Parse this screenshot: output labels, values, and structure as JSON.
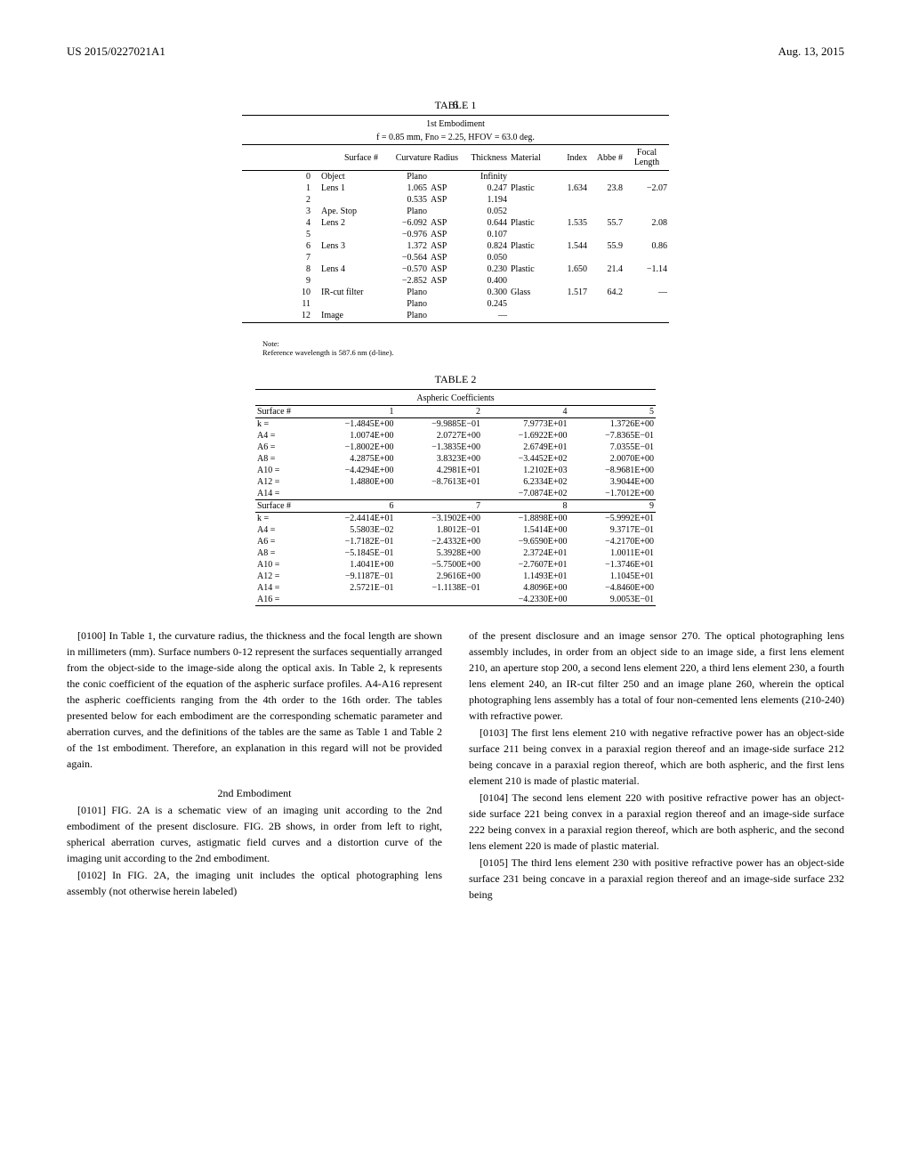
{
  "header": {
    "left": "US 2015/0227021A1",
    "right": "Aug. 13, 2015"
  },
  "pageNumber": "6",
  "table1": {
    "title": "TABLE 1",
    "caption": "1st Embodiment",
    "subcaption": "f = 0.85 mm, Fno = 2.25, HFOV = 63.0 deg.",
    "cols": [
      "Surface #",
      "",
      "Curvature Radius",
      "",
      "Thickness",
      "Material",
      "Index",
      "Abbe #",
      "Focal\nLength"
    ],
    "rows": [
      [
        "0",
        "Object",
        "Plano",
        "",
        "Infinity",
        "",
        "",
        "",
        ""
      ],
      [
        "1",
        "Lens 1",
        "1.065",
        "ASP",
        "0.247",
        "Plastic",
        "1.634",
        "23.8",
        "−2.07"
      ],
      [
        "2",
        "",
        "0.535",
        "ASP",
        "1.194",
        "",
        "",
        "",
        ""
      ],
      [
        "3",
        "Ape. Stop",
        "Plano",
        "",
        "0.052",
        "",
        "",
        "",
        ""
      ],
      [
        "4",
        "Lens 2",
        "−6.092",
        "ASP",
        "0.644",
        "Plastic",
        "1.535",
        "55.7",
        "2.08"
      ],
      [
        "5",
        "",
        "−0.976",
        "ASP",
        "0.107",
        "",
        "",
        "",
        ""
      ],
      [
        "6",
        "Lens 3",
        "1.372",
        "ASP",
        "0.824",
        "Plastic",
        "1.544",
        "55.9",
        "0.86"
      ],
      [
        "7",
        "",
        "−0.564",
        "ASP",
        "0.050",
        "",
        "",
        "",
        ""
      ],
      [
        "8",
        "Lens 4",
        "−0.570",
        "ASP",
        "0.230",
        "Plastic",
        "1.650",
        "21.4",
        "−1.14"
      ],
      [
        "9",
        "",
        "−2.852",
        "ASP",
        "0.400",
        "",
        "",
        "",
        ""
      ],
      [
        "10",
        "IR-cut filter",
        "Plano",
        "",
        "0.300",
        "Glass",
        "1.517",
        "64.2",
        "—"
      ],
      [
        "11",
        "",
        "Plano",
        "",
        "0.245",
        "",
        "",
        "",
        ""
      ],
      [
        "12",
        "Image",
        "Plano",
        "",
        "—",
        "",
        "",
        "",
        ""
      ]
    ],
    "note": "Note:",
    "noteText": "Reference wavelength is 587.6 nm (d-line)."
  },
  "table2": {
    "title": "TABLE 2",
    "caption": "Aspheric Coefficients",
    "head1": [
      "Surface #",
      "1",
      "2",
      "4",
      "5"
    ],
    "block1": [
      [
        "k =",
        "−1.4845E+00",
        "−9.9885E−01",
        "7.9773E+01",
        "1.3726E+00"
      ],
      [
        "A4 =",
        "1.0074E+00",
        "2.0727E+00",
        "−1.6922E+00",
        "−7.8365E−01"
      ],
      [
        "A6 =",
        "−1.8002E+00",
        "−1.3835E+00",
        "2.6749E+01",
        "7.0355E−01"
      ],
      [
        "A8 =",
        "4.2875E+00",
        "3.8323E+00",
        "−3.4452E+02",
        "2.0070E+00"
      ],
      [
        "A10 =",
        "−4.4294E+00",
        "4.2981E+01",
        "1.2102E+03",
        "−8.9681E+00"
      ],
      [
        "A12 =",
        "1.4880E+00",
        "−8.7613E+01",
        "6.2334E+02",
        "3.9044E+00"
      ],
      [
        "A14 =",
        "",
        "",
        "−7.0874E+02",
        "−1.7012E+00"
      ]
    ],
    "head2": [
      "Surface #",
      "6",
      "7",
      "8",
      "9"
    ],
    "block2": [
      [
        "k =",
        "−2.4414E+01",
        "−3.1902E+00",
        "−1.8898E+00",
        "−5.9992E+01"
      ],
      [
        "A4 =",
        "5.5803E−02",
        "1.8012E−01",
        "1.5414E+00",
        "9.3717E−01"
      ],
      [
        "A6 =",
        "−1.7182E−01",
        "−2.4332E+00",
        "−9.6590E+00",
        "−4.2170E+00"
      ],
      [
        "A8 =",
        "−5.1845E−01",
        "5.3928E+00",
        "2.3724E+01",
        "1.0011E+01"
      ],
      [
        "A10 =",
        "1.4041E+00",
        "−5.7500E+00",
        "−2.7607E+01",
        "−1.3746E+01"
      ],
      [
        "A12 =",
        "−9.1187E−01",
        "2.9616E+00",
        "1.1493E+01",
        "1.1045E+01"
      ],
      [
        "A14 =",
        "2.5721E−01",
        "−1.1138E−01",
        "4.8096E+00",
        "−4.8460E+00"
      ],
      [
        "A16 =",
        "",
        "",
        "−4.2330E+00",
        "9.0053E−01"
      ]
    ]
  },
  "body": {
    "p0100": "[0100]  In Table 1, the curvature radius, the thickness and the focal length are shown in millimeters (mm). Surface numbers 0-12 represent the surfaces sequentially arranged from the object-side to the image-side along the optical axis. In Table 2, k represents the conic coefficient of the equation of the aspheric surface profiles. A4-A16 represent the aspheric coefficients ranging from the 4th order to the 16th order. The tables presented below for each embodiment are the corresponding schematic parameter and aberration curves, and the definitions of the tables are the same as Table 1 and Table 2 of the 1st embodiment. Therefore, an explanation in this regard will not be provided again.",
    "sect2": "2nd Embodiment",
    "p0101": "[0101]  FIG. 2A is a schematic view of an imaging unit according to the 2nd embodiment of the present disclosure. FIG. 2B shows, in order from left to right, spherical aberration curves, astigmatic field curves and a distortion curve of the imaging unit according to the 2nd embodiment.",
    "p0102": "[0102]  In FIG. 2A, the imaging unit includes the optical photographing lens assembly (not otherwise herein labeled)",
    "p0102b": "of the present disclosure and an image sensor 270. The optical photographing lens assembly includes, in order from an object side to an image side, a first lens element 210, an aperture stop 200, a second lens element 220, a third lens element 230, a fourth lens element 240, an IR-cut filter 250 and an image plane 260, wherein the optical photographing lens assembly has a total of four non-cemented lens elements (210-240) with refractive power.",
    "p0103": "[0103]  The first lens element 210 with negative refractive power has an object-side surface 211 being convex in a paraxial region thereof and an image-side surface 212 being concave in a paraxial region thereof, which are both aspheric, and the first lens element 210 is made of plastic material.",
    "p0104": "[0104]  The second lens element 220 with positive refractive power has an object-side surface 221 being convex in a paraxial region thereof and an image-side surface 222 being convex in a paraxial region thereof, which are both aspheric, and the second lens element 220 is made of plastic material.",
    "p0105": "[0105]  The third lens element 230 with positive refractive power has an object-side surface 231 being concave in a paraxial region thereof and an image-side surface 232 being"
  }
}
